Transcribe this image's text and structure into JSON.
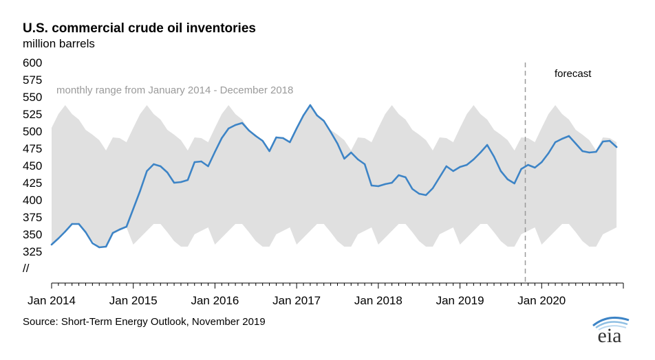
{
  "chart_data": {
    "type": "area",
    "title": "U.S. commercial crude oil inventories",
    "subtitle": "million barrels",
    "y_axis_break": "//",
    "ylim": [
      325,
      600
    ],
    "yticks": [
      600,
      575,
      550,
      525,
      500,
      475,
      450,
      425,
      400,
      375,
      350,
      325
    ],
    "x_labels": [
      "Jan 2014",
      "Jan 2015",
      "Jan 2016",
      "Jan 2017",
      "Jan 2018",
      "Jan 2019",
      "Jan 2020"
    ],
    "x_label_month_index": [
      0,
      12,
      24,
      36,
      48,
      60,
      72
    ],
    "x_month_count": 84,
    "forecast_start_month": 70,
    "forecast_label": "forecast",
    "range_label": "monthly range from January 2014 - December 2018",
    "source": "Source: Short-Term Energy Outlook, November 2019",
    "range_band": {
      "name": "monthly range from January 2014 - December 2018",
      "color": "#e0e0e0",
      "monthly_max": [
        505,
        525,
        538,
        525,
        517,
        502,
        495,
        487,
        472,
        491,
        490,
        484
      ],
      "monthly_min": [
        335,
        345,
        355,
        365,
        365,
        353,
        340,
        332,
        332,
        350,
        355,
        360
      ]
    },
    "series": [
      {
        "name": "U.S. commercial crude oil inventories",
        "color": "#3d84c6",
        "values": [
          335,
          344,
          354,
          365,
          365,
          353,
          337,
          331,
          332,
          352,
          357,
          361,
          387,
          413,
          442,
          452,
          449,
          440,
          425,
          426,
          429,
          455,
          456,
          449,
          470,
          490,
          504,
          509,
          512,
          501,
          493,
          486,
          471,
          491,
          490,
          484,
          504,
          523,
          538,
          523,
          515,
          499,
          482,
          460,
          469,
          459,
          452,
          421,
          420,
          423,
          425,
          436,
          433,
          416,
          409,
          407,
          417,
          433,
          449,
          442,
          448,
          451,
          459,
          469,
          480,
          463,
          442,
          430,
          424,
          445,
          451,
          447,
          455,
          468,
          484,
          489,
          493,
          482,
          471,
          469,
          470,
          485,
          486,
          477
        ]
      }
    ]
  },
  "logo": {
    "text": "eia",
    "accent_color": "#3d84c6"
  }
}
